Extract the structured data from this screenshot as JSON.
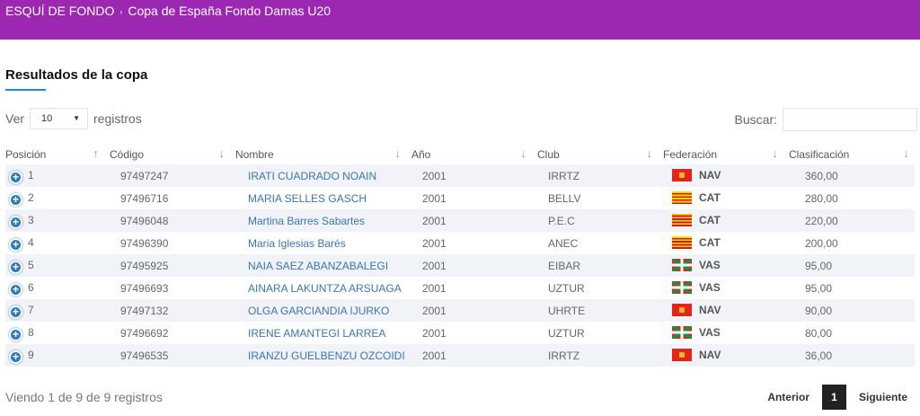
{
  "breadcrumb": {
    "root": "ESQUÍ DE FONDO",
    "separator": "›",
    "current": "Copa de España Fondo Damas U20"
  },
  "section_title": "Resultados de la copa",
  "length_control": {
    "prefix": "Ver",
    "selected": "10",
    "suffix": "registros"
  },
  "search": {
    "label": "Buscar:",
    "value": ""
  },
  "columns": {
    "posicion": "Posición",
    "codigo": "Código",
    "nombre": "Nombre",
    "ano": "Año",
    "club": "Club",
    "federacion": "Federación",
    "clasificacion": "Clasificación"
  },
  "sort_icons": {
    "asc": "↑",
    "desc": "↓"
  },
  "rows": [
    {
      "pos": "1",
      "code": "97497247",
      "name": "IRATI CUADRADO NOAIN",
      "year": "2001",
      "club": "IRRTZ",
      "fed": "NAV",
      "clas": "360,00"
    },
    {
      "pos": "2",
      "code": "97496716",
      "name": "MARIA SELLES GASCH",
      "year": "2001",
      "club": "BELLV",
      "fed": "CAT",
      "clas": "280,00"
    },
    {
      "pos": "3",
      "code": "97496048",
      "name": "Martina Barres Sabartes",
      "year": "2001",
      "club": "P.E.C",
      "fed": "CAT",
      "clas": "220,00"
    },
    {
      "pos": "4",
      "code": "97496390",
      "name": "Maria Iglesias Barés",
      "year": "2001",
      "club": "ANEC",
      "fed": "CAT",
      "clas": "200,00"
    },
    {
      "pos": "5",
      "code": "97495925",
      "name": "NAIA SAEZ ABANZABALEGI",
      "year": "2001",
      "club": "EIBAR",
      "fed": "VAS",
      "clas": "95,00"
    },
    {
      "pos": "6",
      "code": "97496693",
      "name": "AINARA LAKUNTZA ARSUAGA",
      "year": "2001",
      "club": "UZTUR",
      "fed": "VAS",
      "clas": "95,00"
    },
    {
      "pos": "7",
      "code": "97497132",
      "name": "OLGA GARCIANDIA IJURKO",
      "year": "2001",
      "club": "UHRTE",
      "fed": "NAV",
      "clas": "90,00"
    },
    {
      "pos": "8",
      "code": "97496692",
      "name": "IRENE AMANTEGI LARREA",
      "year": "2001",
      "club": "UZTUR",
      "fed": "VAS",
      "clas": "80,00"
    },
    {
      "pos": "9",
      "code": "97496535",
      "name": "IRANZU GUELBENZU OZCOIDI",
      "year": "2001",
      "club": "IRRTZ",
      "fed": "NAV",
      "clas": "36,00"
    }
  ],
  "info": "Viendo 1 de 9 de 9 registros",
  "pager": {
    "prev": "Anterior",
    "page": "1",
    "next": "Siguiente"
  },
  "colors": {
    "header_bar": "#9c27b0",
    "accent": "#1e88e5",
    "link": "#3a74b5",
    "row_stripe": "#f1f3f8"
  },
  "icons": {
    "expand": "plus-circle-icon",
    "dropdown": "caret-down-icon",
    "sort": "sort-arrow-icon"
  }
}
